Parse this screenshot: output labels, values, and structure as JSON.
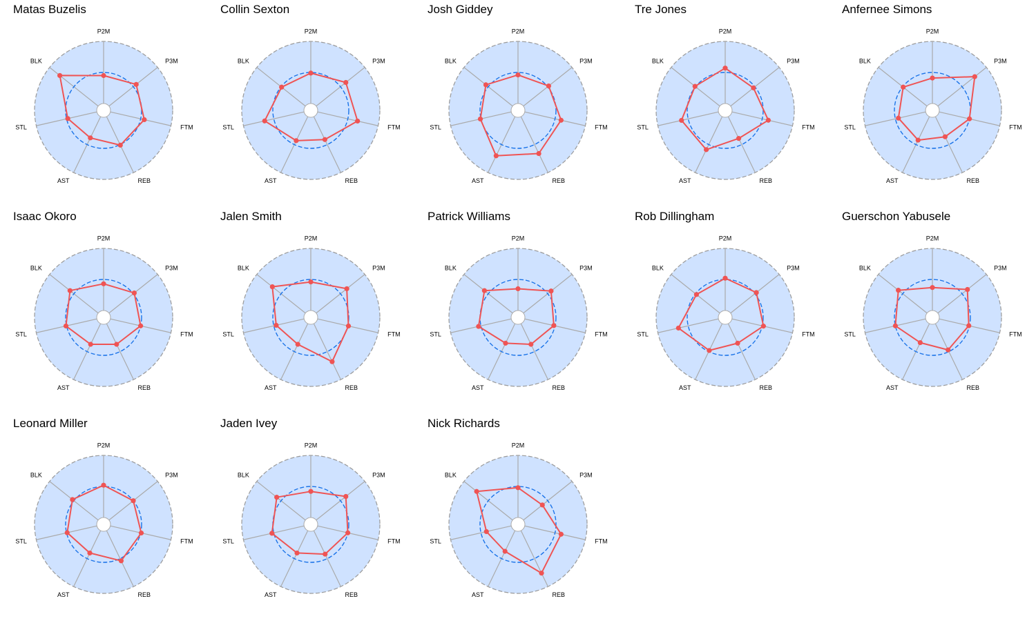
{
  "chart_data": {
    "type": "radar",
    "axes": [
      "P2M",
      "P3M",
      "FTM",
      "REB",
      "AST",
      "STL",
      "BLK"
    ],
    "ylim": [
      0,
      1
    ],
    "reference_level": 0.5,
    "grid": true,
    "colors": {
      "background": "#cfe2ff",
      "series": "#ef5454",
      "reference": "#1a73e8",
      "spoke": "#aaaaaa",
      "outer_ring": "#999999"
    },
    "panels": [
      {
        "title": "Matas Buzelis",
        "values": [
          0.45,
          0.56,
          0.56,
          0.51,
          0.38,
          0.48,
          0.79
        ]
      },
      {
        "title": "Collin Sexton",
        "values": [
          0.49,
          0.61,
          0.66,
          0.41,
          0.43,
          0.65,
          0.49
        ]
      },
      {
        "title": "Josh Giddey",
        "values": [
          0.46,
          0.52,
          0.6,
          0.66,
          0.7,
          0.51,
          0.55
        ]
      },
      {
        "title": "Tre Jones",
        "values": [
          0.57,
          0.47,
          0.6,
          0.39,
          0.59,
          0.61,
          0.51
        ]
      },
      {
        "title": "Anfernee Simons",
        "values": [
          0.41,
          0.76,
          0.5,
          0.36,
          0.42,
          0.45,
          0.49
        ]
      },
      {
        "title": "Isaac Okoro",
        "values": [
          0.43,
          0.52,
          0.5,
          0.37,
          0.37,
          0.51,
          0.58
        ]
      },
      {
        "title": "Jalen Smith",
        "values": [
          0.46,
          0.63,
          0.51,
          0.68,
          0.37,
          0.46,
          0.68
        ]
      },
      {
        "title": "Patrick Williams",
        "values": [
          0.35,
          0.57,
          0.48,
          0.37,
          0.35,
          0.54,
          0.58
        ]
      },
      {
        "title": "Rob Dillingham",
        "values": [
          0.52,
          0.53,
          0.52,
          0.35,
          0.48,
          0.66,
          0.48
        ]
      },
      {
        "title": "Guerschon Yabusele",
        "values": [
          0.37,
          0.61,
          0.49,
          0.47,
          0.34,
          0.5,
          0.59
        ]
      },
      {
        "title": "Leonard Miller",
        "values": [
          0.52,
          0.5,
          0.51,
          0.54,
          0.4,
          0.49,
          0.53
        ]
      },
      {
        "title": "Jaden Ivey",
        "values": [
          0.42,
          0.61,
          0.5,
          0.42,
          0.4,
          0.53,
          0.59
        ]
      },
      {
        "title": "Nick Richards",
        "values": [
          0.48,
          0.39,
          0.6,
          0.76,
          0.37,
          0.41,
          0.74
        ]
      }
    ]
  }
}
